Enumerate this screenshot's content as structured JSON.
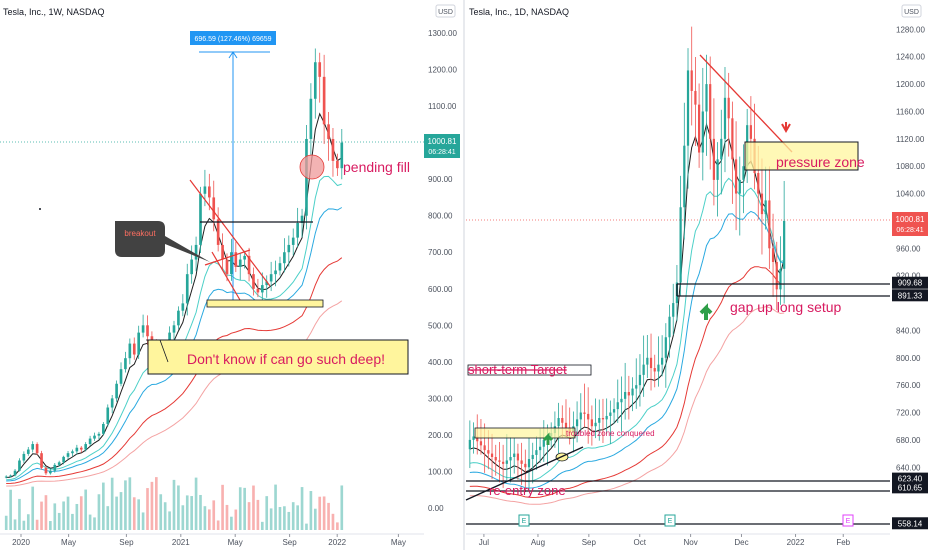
{
  "colors": {
    "up": "#26a69a",
    "down": "#ef5350",
    "ema_black": "#1e1e1e",
    "ema_teal": "#4dd0c8",
    "ema_blue": "#2aa9e0",
    "ema_red": "#e53935",
    "ema_pink": "#f4a3a3",
    "annotation": "#d81b60",
    "price_tag": "#ef5350",
    "arrow_green": "#2e9e48",
    "highlight_yellow": "#fff59d"
  },
  "chart_data": [
    {
      "type": "candlestick",
      "symbol": "Tesla, Inc., 1W, NASDAQ",
      "currency": "USD",
      "y_ticks": [
        "1300.00",
        "1200.00",
        "1100.00",
        "1000.00",
        "900.00",
        "800.00",
        "700.00",
        "600.00",
        "500.00",
        "400.00",
        "300.00",
        "200.00",
        "100.00",
        "0.00"
      ],
      "ylim": [
        0,
        1300
      ],
      "x_ticks": [
        "2020",
        "May",
        "Sep",
        "2021",
        "May",
        "Sep",
        "2022",
        "May"
      ],
      "price_label": {
        "value": "1000.81",
        "countdown": "06:28:41"
      },
      "measure_label": "696.59 (127.46%) 69659",
      "annotations": {
        "breakout": "breakout",
        "pending_fill": "pending fill",
        "deep_note": "Don't know if can go such deep!"
      },
      "weekly_closes": [
        86,
        89,
        102,
        130,
        148,
        160,
        175,
        150,
        110,
        95,
        102,
        118,
        125,
        140,
        150,
        155,
        165,
        160,
        175,
        190,
        198,
        203,
        230,
        275,
        300,
        340,
        380,
        410,
        450,
        420,
        480,
        500,
        470,
        440,
        400,
        430,
        440,
        480,
        500,
        540,
        560,
        640,
        680,
        720,
        860,
        880,
        850,
        790,
        720,
        680,
        640,
        700,
        660,
        680,
        690,
        640,
        600,
        590,
        610,
        620,
        640,
        650,
        670,
        700,
        720,
        740,
        780,
        800,
        1010,
        1120,
        1220,
        1180,
        1050,
        1010,
        950,
        930,
        1000
      ]
    },
    {
      "type": "candlestick",
      "symbol": "Tesla, Inc., 1D, NASDAQ",
      "currency": "USD",
      "y_ticks": [
        "1320.00",
        "1280.00",
        "1240.00",
        "1200.00",
        "1160.00",
        "1120.00",
        "1080.00",
        "1040.00",
        "960.00",
        "920.00",
        "840.00",
        "800.00",
        "760.00",
        "720.00",
        "680.00",
        "640.00"
      ],
      "ylim": [
        560,
        1320
      ],
      "x_ticks": [
        "Jul",
        "Aug",
        "Sep",
        "Oct",
        "Nov",
        "Dec",
        "2022",
        "Feb"
      ],
      "levels": [
        {
          "label": "909.68",
          "value": 909.68
        },
        {
          "label": "891.33",
          "value": 891.33
        },
        {
          "label": "623.40",
          "value": 623.4
        },
        {
          "label": "610.65",
          "value": 610.65
        },
        {
          "label": "558.14",
          "value": 558.14
        }
      ],
      "price_label": {
        "value": "1000.81",
        "countdown": "06:28:41"
      },
      "annotations": {
        "pressure_zone": "pressure zone",
        "gap_up": "gap up long setup",
        "short_term_target": "short-term Target",
        "troubled_zone": "troubled zone conquered",
        "re_entry": "re-entry zone"
      },
      "events": [
        "E",
        "E",
        "E"
      ],
      "daily_closes": [
        680,
        685,
        678,
        672,
        665,
        660,
        655,
        650,
        648,
        645,
        650,
        655,
        660,
        650,
        645,
        640,
        652,
        658,
        665,
        670,
        680,
        685,
        690,
        700,
        712,
        705,
        698,
        690,
        700,
        710,
        720,
        718,
        710,
        700,
        705,
        712,
        710,
        715,
        720,
        725,
        735,
        740,
        750,
        745,
        755,
        760,
        775,
        790,
        800,
        785,
        780,
        790,
        800,
        830,
        860,
        880,
        910,
        1020,
        1110,
        1220,
        1190,
        1170,
        1100,
        1160,
        1200,
        1120,
        1060,
        1090,
        1120,
        1180,
        1150,
        1090,
        1040,
        1060,
        1080,
        1140,
        1120,
        1070,
        1040,
        1010,
        1030,
        960,
        940,
        900,
        930,
        1000
      ]
    }
  ]
}
